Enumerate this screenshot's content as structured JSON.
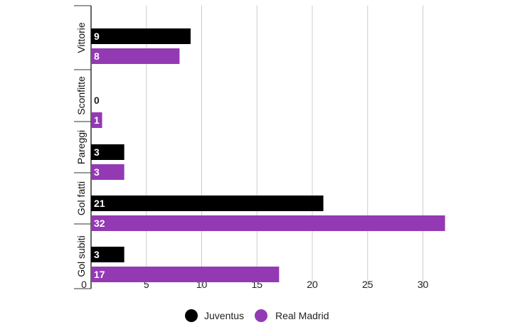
{
  "chart_data": {
    "type": "bar",
    "orientation": "horizontal",
    "title": "",
    "xlabel": "",
    "ylabel": "",
    "categories": [
      "Vittorie",
      "Sconfitte",
      "Pareggi",
      "Gol fatti",
      "Gol subiti"
    ],
    "series": [
      {
        "name": "Juventus",
        "color": "#000000",
        "values": [
          9,
          0,
          3,
          21,
          3
        ]
      },
      {
        "name": "Real Madrid",
        "color": "#9439b4",
        "values": [
          8,
          1,
          3,
          32,
          17
        ]
      }
    ],
    "xlim": [
      0,
      32
    ],
    "xticks": [
      0,
      5,
      10,
      15,
      20,
      25,
      30
    ],
    "grid": "vertical",
    "legend": "bottom-center"
  }
}
